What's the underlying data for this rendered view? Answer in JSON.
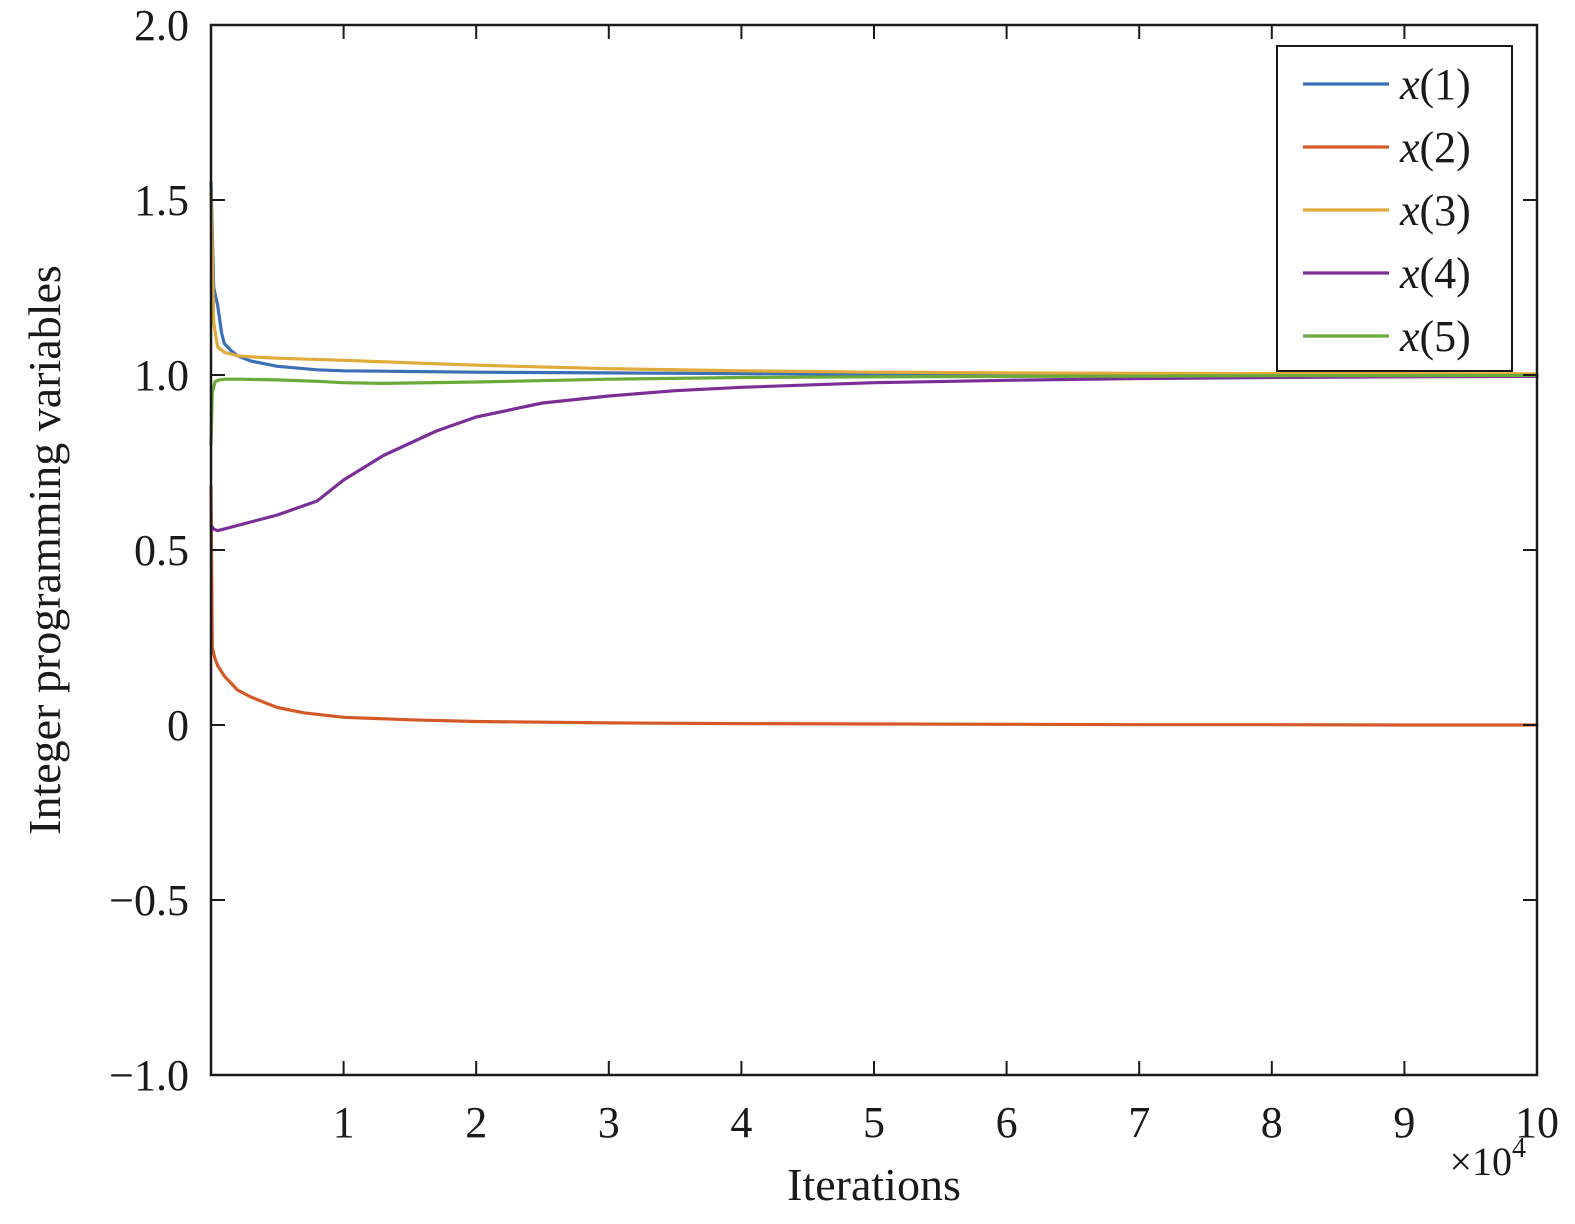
{
  "chart_data": {
    "type": "line",
    "xlabel": "Iterations",
    "ylabel": "Integer programming variables",
    "x_multiplier": "×10",
    "x_multiplier_exponent": "4",
    "xlim": [
      0,
      10
    ],
    "ylim": [
      -1.0,
      2.0
    ],
    "xticks": [
      1,
      2,
      3,
      4,
      5,
      6,
      7,
      8,
      9,
      10
    ],
    "xtick_labels": [
      "1",
      "2",
      "3",
      "4",
      "5",
      "6",
      "7",
      "8",
      "9",
      "10"
    ],
    "yticks": [
      -1.0,
      -0.5,
      0,
      0.5,
      1.0,
      1.5,
      2.0
    ],
    "ytick_labels": [
      "−1.0",
      "−0.5",
      "0",
      "0.5",
      "1.0",
      "1.5",
      "2.0"
    ],
    "grid": false,
    "legend_position": "top-right",
    "series": [
      {
        "name": "x(1)",
        "name_var": "x",
        "name_index": "(1)",
        "color": "#3b6fb6",
        "x": [
          0,
          0.02,
          0.05,
          0.08,
          0.1,
          0.15,
          0.2,
          0.3,
          0.5,
          0.8,
          1,
          1.5,
          2,
          3,
          4,
          5,
          6,
          7,
          8,
          9,
          10
        ],
        "y": [
          1.55,
          1.25,
          1.2,
          1.12,
          1.09,
          1.07,
          1.055,
          1.04,
          1.025,
          1.015,
          1.012,
          1.01,
          1.008,
          1.006,
          1.004,
          1.002,
          1.0,
          1.0,
          1.0,
          1.0,
          1.0
        ]
      },
      {
        "name": "x(2)",
        "name_var": "x",
        "name_index": "(2)",
        "color": "#d35a28",
        "x": [
          0,
          0.01,
          0.03,
          0.05,
          0.1,
          0.15,
          0.2,
          0.3,
          0.4,
          0.5,
          0.7,
          1,
          1.5,
          2,
          3,
          4,
          5,
          6,
          7,
          8,
          9,
          10
        ],
        "y": [
          0.68,
          0.22,
          0.19,
          0.17,
          0.14,
          0.12,
          0.1,
          0.08,
          0.065,
          0.05,
          0.035,
          0.022,
          0.015,
          0.01,
          0.006,
          0.004,
          0.003,
          0.002,
          0.001,
          0.001,
          0.0,
          0.0
        ]
      },
      {
        "name": "x(3)",
        "name_var": "x",
        "name_index": "(3)",
        "color": "#e0ab3a",
        "x": [
          0,
          0.02,
          0.05,
          0.1,
          0.15,
          0.2,
          0.3,
          0.5,
          1,
          1.5,
          2,
          3,
          4,
          5,
          6,
          7,
          8,
          9,
          10
        ],
        "y": [
          1.52,
          1.15,
          1.08,
          1.065,
          1.06,
          1.055,
          1.052,
          1.048,
          1.042,
          1.035,
          1.028,
          1.018,
          1.012,
          1.008,
          1.006,
          1.005,
          1.004,
          1.004,
          1.003
        ]
      },
      {
        "name": "x(4)",
        "name_var": "x",
        "name_index": "(4)",
        "color": "#7b2f96",
        "x": [
          0,
          0.02,
          0.05,
          0.2,
          0.5,
          0.8,
          1,
          1.3,
          1.7,
          2,
          2.5,
          3,
          3.5,
          4,
          5,
          6,
          7,
          8,
          9,
          10
        ],
        "y": [
          0.57,
          0.56,
          0.555,
          0.57,
          0.6,
          0.64,
          0.7,
          0.77,
          0.84,
          0.88,
          0.92,
          0.94,
          0.955,
          0.965,
          0.978,
          0.985,
          0.99,
          0.993,
          0.995,
          0.996
        ]
      },
      {
        "name": "x(5)",
        "name_var": "x",
        "name_index": "(5)",
        "color": "#6aaa3a",
        "x": [
          0,
          0.01,
          0.03,
          0.05,
          0.1,
          0.2,
          0.5,
          0.8,
          1,
          1.3,
          2,
          3,
          4,
          5,
          6,
          7,
          8,
          9,
          10
        ],
        "y": [
          0.8,
          0.95,
          0.98,
          0.985,
          0.988,
          0.988,
          0.986,
          0.982,
          0.978,
          0.976,
          0.98,
          0.988,
          0.993,
          0.995,
          0.996,
          0.997,
          0.998,
          0.998,
          0.999
        ]
      }
    ]
  }
}
